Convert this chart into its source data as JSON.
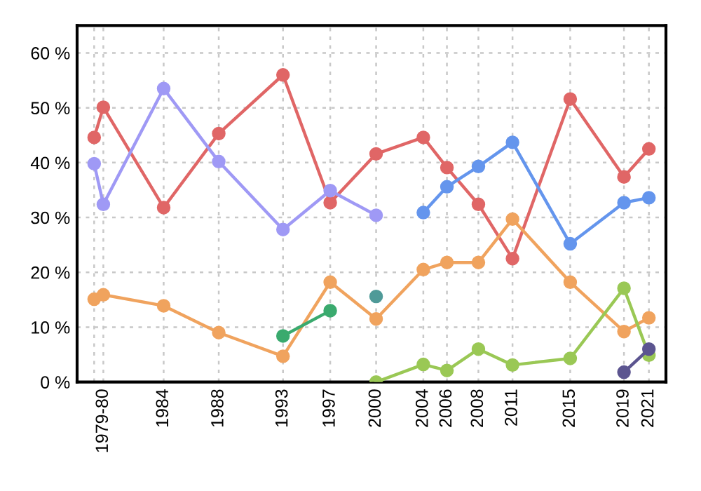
{
  "chart_data": {
    "type": "line",
    "marker": "circle",
    "grid": true,
    "xlim": [
      1977.4,
      2022.3
    ],
    "ylim": [
      0,
      65
    ],
    "xticks": [
      {
        "value": 1978.7,
        "label": null
      },
      {
        "value": 1979.4,
        "label": "1979-80"
      },
      1984,
      {
        "value": 1988.2,
        "label": "1988"
      },
      {
        "value": 1993.1,
        "label": "1993"
      },
      {
        "value": 1996.7,
        "label": "1997"
      },
      {
        "value": 2000.2,
        "label": "2000"
      },
      {
        "value": 2003.8,
        "label": "2004"
      },
      {
        "value": 2005.6,
        "label": "2006"
      },
      2008,
      {
        "value": 2010.6,
        "label": "2011"
      },
      2015,
      {
        "value": 2019.1,
        "label": "2019"
      },
      2021
    ],
    "yticks": [
      {
        "value": 0,
        "label": "0 %"
      },
      {
        "value": 10,
        "label": "10 %"
      },
      {
        "value": 20,
        "label": "20 %"
      },
      {
        "value": 30,
        "label": "30 %"
      },
      {
        "value": 40,
        "label": "40 %"
      },
      {
        "value": 50,
        "label": "50 %"
      },
      {
        "value": 60,
        "label": "60 %"
      }
    ],
    "x": [
      1978.7,
      1979.4,
      1984,
      1988.2,
      1993.1,
      1996.7,
      2000.2,
      2003.8,
      2005.6,
      2008,
      2010.6,
      2015,
      2019.1,
      2021
    ],
    "series": [
      {
        "color": "#e06666",
        "values": [
          44.6,
          50.1,
          31.8,
          45.3,
          56.0,
          32.7,
          41.6,
          44.6,
          39.1,
          32.4,
          22.5,
          51.6,
          37.4,
          42.5
        ]
      },
      {
        "color": "#9f99f5",
        "values": [
          39.8,
          32.4,
          53.5,
          40.2,
          27.8,
          34.9,
          30.4,
          null,
          null,
          null,
          null,
          null,
          null,
          null
        ]
      },
      {
        "color": "#6495ed",
        "values": [
          null,
          null,
          null,
          null,
          null,
          null,
          null,
          30.9,
          35.6,
          39.3,
          43.7,
          25.2,
          32.7,
          33.6
        ]
      },
      {
        "color": "#f0a35e",
        "values": [
          15.1,
          15.9,
          13.9,
          9.0,
          4.7,
          18.2,
          11.5,
          20.5,
          21.8,
          21.8,
          29.7,
          18.2,
          9.2,
          11.7
        ]
      },
      {
        "color": "#3aaa6e",
        "values": [
          null,
          null,
          null,
          null,
          8.4,
          13.0,
          null,
          null,
          null,
          null,
          null,
          null,
          null,
          null
        ]
      },
      {
        "color": "#4f9a98",
        "values": [
          null,
          null,
          null,
          null,
          null,
          null,
          15.6,
          null,
          null,
          null,
          null,
          null,
          null,
          null
        ]
      },
      {
        "color": "#9ac855",
        "values": [
          null,
          null,
          null,
          null,
          null,
          null,
          0,
          3.2,
          2.1,
          6.0,
          3.1,
          4.3,
          17.1,
          4.9
        ]
      },
      {
        "color": "#5c5590",
        "values": [
          null,
          null,
          null,
          null,
          null,
          null,
          null,
          null,
          null,
          null,
          null,
          null,
          1.8,
          6.0
        ]
      }
    ]
  }
}
